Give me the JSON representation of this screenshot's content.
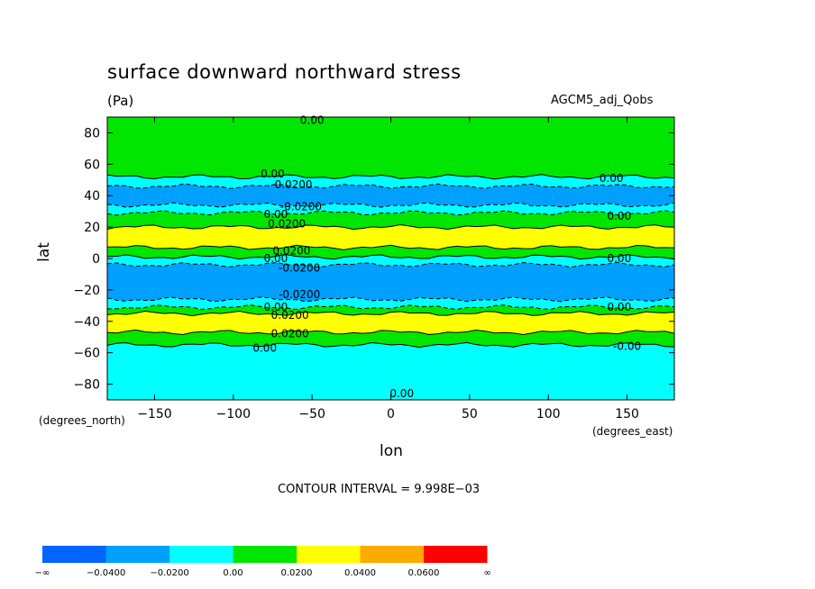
{
  "chart_data": {
    "type": "contour",
    "title": "surface downward northward stress",
    "units": "(Pa)",
    "model_label": "AGCM5_adj_Qobs",
    "xlabel": "lon",
    "ylabel": "lat",
    "x_unit_note": "(degrees_east)",
    "y_unit_note": "(degrees_north)",
    "xlim": [
      -180,
      180
    ],
    "ylim": [
      -90,
      90
    ],
    "x_ticks": [
      -150,
      -100,
      -50,
      0,
      50,
      100,
      150
    ],
    "x_tick_labels": [
      "−150",
      "−100",
      "−50",
      "0",
      "50",
      "100",
      "150"
    ],
    "y_ticks": [
      80,
      60,
      40,
      20,
      0,
      -20,
      -40,
      -60,
      -80
    ],
    "y_tick_labels": [
      "80",
      "60",
      "40",
      "20",
      "0",
      "−20",
      "−40",
      "−60",
      "−80"
    ],
    "contour_interval_text": "CONTOUR INTERVAL = 9.998E−03",
    "contour_labels": [
      {
        "text": "0.00",
        "lon": -50,
        "lat": 88
      },
      {
        "text": "0.00",
        "lon": -75,
        "lat": 54
      },
      {
        "text": "0.00",
        "lon": 140,
        "lat": 51
      },
      {
        "text": "-0.0200",
        "lon": -63,
        "lat": 47
      },
      {
        "text": "-0.0200",
        "lon": -57,
        "lat": 33
      },
      {
        "text": "0.00",
        "lon": 145,
        "lat": 27
      },
      {
        "text": "0.00",
        "lon": -73,
        "lat": 28
      },
      {
        "text": "0.0200",
        "lon": -66,
        "lat": 22
      },
      {
        "text": "0.0200",
        "lon": -63,
        "lat": 5
      },
      {
        "text": "0.00",
        "lon": -73,
        "lat": 0
      },
      {
        "text": "0.00",
        "lon": 145,
        "lat": 0
      },
      {
        "text": "-0.0200",
        "lon": -58,
        "lat": -6
      },
      {
        "text": "-0.0200",
        "lon": -58,
        "lat": -23
      },
      {
        "text": "0.00",
        "lon": -73,
        "lat": -31
      },
      {
        "text": "0.00",
        "lon": 145,
        "lat": -31
      },
      {
        "text": "0.0200",
        "lon": -64,
        "lat": -36
      },
      {
        "text": "0.0200",
        "lon": -64,
        "lat": -48
      },
      {
        "text": "0.00",
        "lon": -80,
        "lat": -57
      },
      {
        "text": "-0.00",
        "lon": 150,
        "lat": -56
      },
      {
        "text": "0.00",
        "lon": 7,
        "lat": -86
      }
    ],
    "colorbar": {
      "labels": [
        "−∞",
        "−0.0400",
        "−0.0200",
        "0.00",
        "0.0200",
        "0.0400",
        "0.0600",
        "∞"
      ],
      "colors": [
        "#0064ff",
        "#00a0ff",
        "#00ffff",
        "#00e600",
        "#ffff00",
        "#ffaa00",
        "#ff0000"
      ]
    },
    "bands": [
      {
        "from": 90,
        "to": 52,
        "color": "#00e600",
        "value": "0.00 to 0.0200"
      },
      {
        "from": 52,
        "to": 46,
        "color": "#00ffff",
        "value": "-0.0200 to 0.00"
      },
      {
        "from": 46,
        "to": 34,
        "color": "#00a0ff",
        "value": "-0.0400 to -0.0200"
      },
      {
        "from": 34,
        "to": 29,
        "color": "#00ffff",
        "value": "-0.0200 to 0.00"
      },
      {
        "from": 29,
        "to": 20,
        "color": "#00e600",
        "value": "0.00 to 0.0200"
      },
      {
        "from": 20,
        "to": 7,
        "color": "#ffff00",
        "value": "0.0200 to 0.0400"
      },
      {
        "from": 7,
        "to": 1,
        "color": "#00e600",
        "value": "0.00 to 0.0200"
      },
      {
        "from": 1,
        "to": -4,
        "color": "#00ffff",
        "value": "-0.0200 to 0.00"
      },
      {
        "from": -4,
        "to": -26,
        "color": "#00a0ff",
        "value": "-0.0400 to -0.0200"
      },
      {
        "from": -26,
        "to": -31,
        "color": "#00ffff",
        "value": "-0.0200 to 0.00"
      },
      {
        "from": -31,
        "to": -35,
        "color": "#00e600",
        "value": "0.00 to 0.0200"
      },
      {
        "from": -35,
        "to": -47,
        "color": "#ffff00",
        "value": "0.0200 to 0.0400"
      },
      {
        "from": -47,
        "to": -55,
        "color": "#00e600",
        "value": "0.00 to 0.0200"
      },
      {
        "from": -55,
        "to": -90,
        "color": "#00ffff",
        "value": "-0.0200 to 0.00"
      }
    ],
    "grid": false
  }
}
